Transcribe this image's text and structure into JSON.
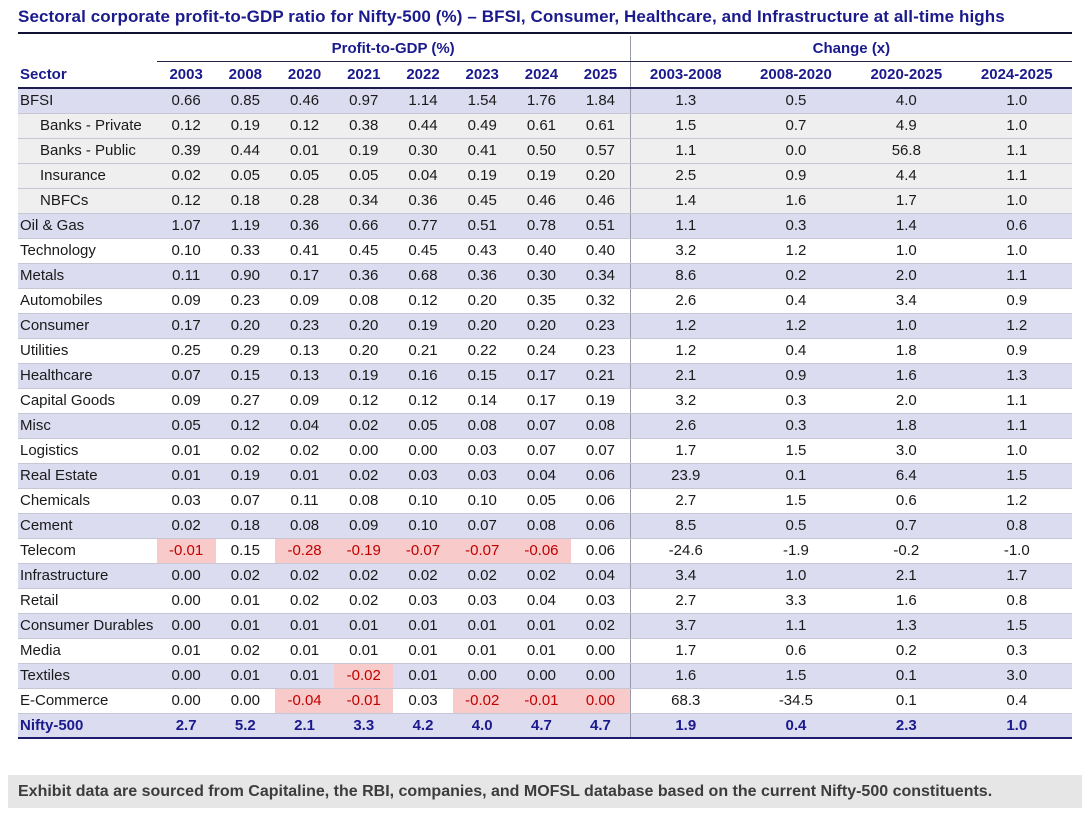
{
  "title": "Sectoral corporate profit-to-GDP ratio for Nifty-500 (%) – BFSI, Consumer, Healthcare, and Infrastructure at all-time highs",
  "footer_note": "Exhibit data are sourced from Capitaline, the RBI, companies, and MOFSL database based on the current Nifty-500 constituents.",
  "colors": {
    "navy_heading": "#1a1a8c",
    "lavender_row": "#dcdcf1",
    "subrow_gray": "#efefef",
    "negative_cell_bg": "#f8caca",
    "negative_cell_text": "#c00000",
    "footer_bg": "#e6e6e6"
  },
  "chart_data": {
    "type": "table",
    "title": "Sectoral corporate profit-to-GDP ratio for Nifty-500 (%) – BFSI, Consumer, Healthcare, and Infrastructure at all-time highs",
    "sector_header": "Sector",
    "column_groups": [
      {
        "label": "Profit-to-GDP (%)",
        "columns": [
          "2003",
          "2008",
          "2020",
          "2021",
          "2022",
          "2023",
          "2024",
          "2025"
        ]
      },
      {
        "label": "Change (x)",
        "columns": [
          "2003-2008",
          "2008-2020",
          "2020-2025",
          "2024-2025"
        ]
      }
    ],
    "rows": [
      {
        "sector": "BFSI",
        "style": "lav",
        "profit_to_gdp": [
          "0.66",
          "0.85",
          "0.46",
          "0.97",
          "1.14",
          "1.54",
          "1.76",
          "1.84"
        ],
        "change_x": [
          "1.3",
          "0.5",
          "4.0",
          "1.0"
        ],
        "highlight": []
      },
      {
        "sector": "Banks - Private",
        "style": "sub",
        "profit_to_gdp": [
          "0.12",
          "0.19",
          "0.12",
          "0.38",
          "0.44",
          "0.49",
          "0.61",
          "0.61"
        ],
        "change_x": [
          "1.5",
          "0.7",
          "4.9",
          "1.0"
        ],
        "highlight": []
      },
      {
        "sector": "Banks - Public",
        "style": "sub",
        "profit_to_gdp": [
          "0.39",
          "0.44",
          "0.01",
          "0.19",
          "0.30",
          "0.41",
          "0.50",
          "0.57"
        ],
        "change_x": [
          "1.1",
          "0.0",
          "56.8",
          "1.1"
        ],
        "highlight": []
      },
      {
        "sector": "Insurance",
        "style": "sub",
        "profit_to_gdp": [
          "0.02",
          "0.05",
          "0.05",
          "0.05",
          "0.04",
          "0.19",
          "0.19",
          "0.20"
        ],
        "change_x": [
          "2.5",
          "0.9",
          "4.4",
          "1.1"
        ],
        "highlight": []
      },
      {
        "sector": "NBFCs",
        "style": "sub",
        "profit_to_gdp": [
          "0.12",
          "0.18",
          "0.28",
          "0.34",
          "0.36",
          "0.45",
          "0.46",
          "0.46"
        ],
        "change_x": [
          "1.4",
          "1.6",
          "1.7",
          "1.0"
        ],
        "highlight": []
      },
      {
        "sector": "Oil & Gas",
        "style": "lav",
        "profit_to_gdp": [
          "1.07",
          "1.19",
          "0.36",
          "0.66",
          "0.77",
          "0.51",
          "0.78",
          "0.51"
        ],
        "change_x": [
          "1.1",
          "0.3",
          "1.4",
          "0.6"
        ],
        "highlight": []
      },
      {
        "sector": "Technology",
        "style": "white",
        "profit_to_gdp": [
          "0.10",
          "0.33",
          "0.41",
          "0.45",
          "0.45",
          "0.43",
          "0.40",
          "0.40"
        ],
        "change_x": [
          "3.2",
          "1.2",
          "1.0",
          "1.0"
        ],
        "highlight": []
      },
      {
        "sector": "Metals",
        "style": "lav",
        "profit_to_gdp": [
          "0.11",
          "0.90",
          "0.17",
          "0.36",
          "0.68",
          "0.36",
          "0.30",
          "0.34"
        ],
        "change_x": [
          "8.6",
          "0.2",
          "2.0",
          "1.1"
        ],
        "highlight": []
      },
      {
        "sector": "Automobiles",
        "style": "white",
        "profit_to_gdp": [
          "0.09",
          "0.23",
          "0.09",
          "0.08",
          "0.12",
          "0.20",
          "0.35",
          "0.32"
        ],
        "change_x": [
          "2.6",
          "0.4",
          "3.4",
          "0.9"
        ],
        "highlight": []
      },
      {
        "sector": "Consumer",
        "style": "lav",
        "profit_to_gdp": [
          "0.17",
          "0.20",
          "0.23",
          "0.20",
          "0.19",
          "0.20",
          "0.20",
          "0.23"
        ],
        "change_x": [
          "1.2",
          "1.2",
          "1.0",
          "1.2"
        ],
        "highlight": []
      },
      {
        "sector": "Utilities",
        "style": "white",
        "profit_to_gdp": [
          "0.25",
          "0.29",
          "0.13",
          "0.20",
          "0.21",
          "0.22",
          "0.24",
          "0.23"
        ],
        "change_x": [
          "1.2",
          "0.4",
          "1.8",
          "0.9"
        ],
        "highlight": []
      },
      {
        "sector": "Healthcare",
        "style": "lav",
        "profit_to_gdp": [
          "0.07",
          "0.15",
          "0.13",
          "0.19",
          "0.16",
          "0.15",
          "0.17",
          "0.21"
        ],
        "change_x": [
          "2.1",
          "0.9",
          "1.6",
          "1.3"
        ],
        "highlight": []
      },
      {
        "sector": "Capital Goods",
        "style": "white",
        "profit_to_gdp": [
          "0.09",
          "0.27",
          "0.09",
          "0.12",
          "0.12",
          "0.14",
          "0.17",
          "0.19"
        ],
        "change_x": [
          "3.2",
          "0.3",
          "2.0",
          "1.1"
        ],
        "highlight": []
      },
      {
        "sector": "Misc",
        "style": "lav",
        "profit_to_gdp": [
          "0.05",
          "0.12",
          "0.04",
          "0.02",
          "0.05",
          "0.08",
          "0.07",
          "0.08"
        ],
        "change_x": [
          "2.6",
          "0.3",
          "1.8",
          "1.1"
        ],
        "highlight": []
      },
      {
        "sector": "Logistics",
        "style": "white",
        "profit_to_gdp": [
          "0.01",
          "0.02",
          "0.02",
          "0.00",
          "0.00",
          "0.03",
          "0.07",
          "0.07"
        ],
        "change_x": [
          "1.7",
          "1.5",
          "3.0",
          "1.0"
        ],
        "highlight": []
      },
      {
        "sector": "Real Estate",
        "style": "lav",
        "profit_to_gdp": [
          "0.01",
          "0.19",
          "0.01",
          "0.02",
          "0.03",
          "0.03",
          "0.04",
          "0.06"
        ],
        "change_x": [
          "23.9",
          "0.1",
          "6.4",
          "1.5"
        ],
        "highlight": []
      },
      {
        "sector": "Chemicals",
        "style": "white",
        "profit_to_gdp": [
          "0.03",
          "0.07",
          "0.11",
          "0.08",
          "0.10",
          "0.10",
          "0.05",
          "0.06"
        ],
        "change_x": [
          "2.7",
          "1.5",
          "0.6",
          "1.2"
        ],
        "highlight": []
      },
      {
        "sector": "Cement",
        "style": "lav",
        "profit_to_gdp": [
          "0.02",
          "0.18",
          "0.08",
          "0.09",
          "0.10",
          "0.07",
          "0.08",
          "0.06"
        ],
        "change_x": [
          "8.5",
          "0.5",
          "0.7",
          "0.8"
        ],
        "highlight": []
      },
      {
        "sector": "Telecom",
        "style": "white",
        "profit_to_gdp": [
          "-0.01",
          "0.15",
          "-0.28",
          "-0.19",
          "-0.07",
          "-0.07",
          "-0.06",
          "0.06"
        ],
        "change_x": [
          "-24.6",
          "-1.9",
          "-0.2",
          "-1.0"
        ],
        "highlight": [
          0,
          2,
          3,
          4,
          5,
          6
        ]
      },
      {
        "sector": "Infrastructure",
        "style": "lav",
        "profit_to_gdp": [
          "0.00",
          "0.02",
          "0.02",
          "0.02",
          "0.02",
          "0.02",
          "0.02",
          "0.04"
        ],
        "change_x": [
          "3.4",
          "1.0",
          "2.1",
          "1.7"
        ],
        "highlight": []
      },
      {
        "sector": "Retail",
        "style": "white",
        "profit_to_gdp": [
          "0.00",
          "0.01",
          "0.02",
          "0.02",
          "0.03",
          "0.03",
          "0.04",
          "0.03"
        ],
        "change_x": [
          "2.7",
          "3.3",
          "1.6",
          "0.8"
        ],
        "highlight": []
      },
      {
        "sector": "Consumer Durables",
        "style": "lav",
        "profit_to_gdp": [
          "0.00",
          "0.01",
          "0.01",
          "0.01",
          "0.01",
          "0.01",
          "0.01",
          "0.02"
        ],
        "change_x": [
          "3.7",
          "1.1",
          "1.3",
          "1.5"
        ],
        "highlight": []
      },
      {
        "sector": "Media",
        "style": "white",
        "profit_to_gdp": [
          "0.01",
          "0.02",
          "0.01",
          "0.01",
          "0.01",
          "0.01",
          "0.01",
          "0.00"
        ],
        "change_x": [
          "1.7",
          "0.6",
          "0.2",
          "0.3"
        ],
        "highlight": []
      },
      {
        "sector": "Textiles",
        "style": "lav",
        "profit_to_gdp": [
          "0.00",
          "0.01",
          "0.01",
          "-0.02",
          "0.01",
          "0.00",
          "0.00",
          "0.00"
        ],
        "change_x": [
          "1.6",
          "1.5",
          "0.1",
          "3.0"
        ],
        "highlight": [
          3
        ]
      },
      {
        "sector": "E-Commerce",
        "style": "white",
        "profit_to_gdp": [
          "0.00",
          "0.00",
          "-0.04",
          "-0.01",
          "0.03",
          "-0.02",
          "-0.01",
          "0.00"
        ],
        "change_x": [
          "68.3",
          "-34.5",
          "0.1",
          "0.4"
        ],
        "highlight": [
          2,
          3,
          5,
          6,
          7
        ]
      },
      {
        "sector": "Nifty-500",
        "style": "total",
        "profit_to_gdp": [
          "2.7",
          "5.2",
          "2.1",
          "3.3",
          "4.2",
          "4.0",
          "4.7",
          "4.7"
        ],
        "change_x": [
          "1.9",
          "0.4",
          "2.3",
          "1.0"
        ],
        "highlight": []
      }
    ]
  }
}
